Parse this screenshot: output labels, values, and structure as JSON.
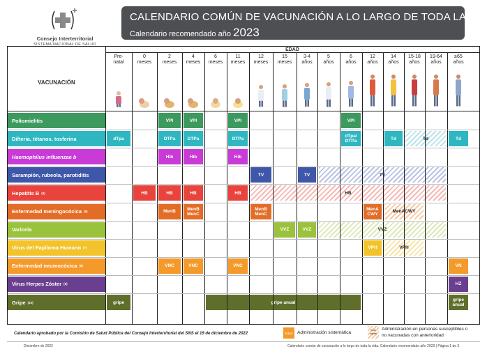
{
  "logo": {
    "org": "Consejo Interterritorial",
    "sub": "SISTEMA NACIONAL DE SALUD"
  },
  "header": {
    "title": "CALENDARIO COMÚN DE VACUNACIÓN A LO LARGO DE TODA LA VIDA",
    "subtitle": "Calendario recomendado año",
    "year": "2023"
  },
  "table": {
    "edad_label": "EDAD",
    "vacunacion_label": "VACUNACIÓN",
    "ages": [
      {
        "l1": "Pre-",
        "l2": "natal"
      },
      {
        "l1": "0",
        "l2": "meses"
      },
      {
        "l1": "2",
        "l2": "meses"
      },
      {
        "l1": "4",
        "l2": "meses"
      },
      {
        "l1": "6",
        "l2": "meses"
      },
      {
        "l1": "11",
        "l2": "meses"
      },
      {
        "l1": "12",
        "l2": "meses"
      },
      {
        "l1": "15",
        "l2": "meses"
      },
      {
        "l1": "3-4",
        "l2": "años"
      },
      {
        "l1": "5",
        "l2": "años"
      },
      {
        "l1": "6",
        "l2": "años"
      },
      {
        "l1": "12",
        "l2": "años"
      },
      {
        "l1": "14",
        "l2": "años"
      },
      {
        "l1": "15-18",
        "l2": "años"
      },
      {
        "l1": "19-64",
        "l2": "años"
      },
      {
        "l1": "≥65",
        "l2": "años"
      }
    ],
    "vaccines": [
      {
        "name": "Poliomielitis",
        "color": "#3c9a5f"
      },
      {
        "name": "Difteria, tétanos, tosferina",
        "color": "#2eb7c1"
      },
      {
        "name": "Haemophilus influenzae b",
        "color": "#c93bd6"
      },
      {
        "name": "Sarampión, rubeola, parotiditis",
        "color": "#3f57a8"
      },
      {
        "name": "Hepatitis B",
        "sup": "(4)",
        "color": "#e8433c"
      },
      {
        "name": "Enfermedad meningocócica",
        "sup": "(5)",
        "color": "#e36c26"
      },
      {
        "name": "Varicela",
        "color": "#9bc23c"
      },
      {
        "name": "Virus del Papiloma Humano",
        "sup": "(7)",
        "color": "#f3c32c"
      },
      {
        "name": "Enfermedad neumocócica",
        "sup": "(8)",
        "color": "#f39a2b"
      },
      {
        "name": "Virus Herpes Zóster",
        "sup": "(9)",
        "color": "#6b3f8f"
      },
      {
        "name": "Gripe",
        "sup": "(10)",
        "color": "#5f6f2b"
      }
    ],
    "cells": {
      "vpi": "VPI",
      "vpi6": "VPI",
      "vpi6_sup": "(1)",
      "dtpa_pre": "dTpa",
      "dtpa_pre_sup": "(2)",
      "dtpa": "DTPa",
      "dtpa6_1": "dTpa/",
      "dtpa6_2": "DTPa",
      "dtpa6_sup": "(2)",
      "td": "Td",
      "td_sup": "(2)",
      "hib": "Hib",
      "tv": "TV",
      "tv_sup": "(3)",
      "hb": "HB",
      "menb": "MenB",
      "menb2": "MenB",
      "menc": "MenC",
      "mena": "MenA",
      "cwy": "CWY",
      "menacwy": "MenACWY",
      "vvz": "VVZ",
      "vvz_sup": "(6)",
      "vph": "VPH",
      "vnc": "VNC",
      "vn": "VN",
      "hz": "HZ",
      "gripe": "gripe",
      "gripe_anual": "gripe anual",
      "gripe2": "gripe",
      "anual2": "anual"
    }
  },
  "legend": {
    "approved": "Calendario aprobado por la Comisión de Salud Pública del Consejo Interterritorial del SNS el 19 de diciembre de 2022",
    "swatch1": "Edad",
    "item1": "Administración sistemática",
    "swatch2a": "Con",
    "swatch2b": "rayas",
    "item2a": "Administración en personas susceptibles o",
    "item2b": "no vacunadas con anterioridad"
  },
  "footer": {
    "date": "Diciembre de 2022",
    "right": "Calendario común de vacunación a lo largo de toda la vida. Calendario recomendado año 2023  |  Página 1 de 3"
  }
}
